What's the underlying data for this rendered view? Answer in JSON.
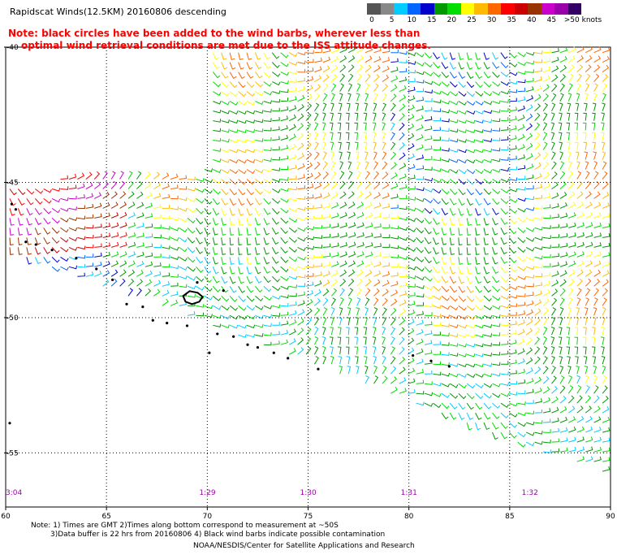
{
  "header": {
    "title": "Rapidscat Winds(12.5KM) 20160806 descending",
    "note_line1": "Note: black circles have been added to the wind barbs, wherever less than",
    "note_line2": "optimal wind retrieval conditions are met due to the ISS attitude changes."
  },
  "colorbar": {
    "labels": [
      "0",
      "5",
      "10",
      "15",
      "20",
      "25",
      "30",
      "35",
      "40",
      "45",
      ">50 knots"
    ],
    "colors": [
      "#555555",
      "#888888",
      "#00ccff",
      "#0066ff",
      "#0000cc",
      "#009900",
      "#00dd00",
      "#ffff00",
      "#ffbb00",
      "#ff6600",
      "#ff0000",
      "#cc0000",
      "#993300",
      "#cc00cc",
      "#9900aa",
      "#330066"
    ]
  },
  "chart_data": {
    "type": "map",
    "xlim": [
      60,
      90
    ],
    "ylim": [
      -57,
      -40
    ],
    "x_ticks": [
      "60",
      "65",
      "70",
      "75",
      "80",
      "85",
      "90"
    ],
    "y_ticks": [
      "-40",
      "-45",
      "-50",
      "-55"
    ],
    "y_tick_values": [
      -40,
      -45,
      -50,
      -55
    ],
    "x_tick_values": [
      60,
      65,
      70,
      75,
      80,
      85,
      90
    ],
    "time_labels": [
      {
        "lon": 60,
        "text": "3:04"
      },
      {
        "lon": 70,
        "text": "1:29"
      },
      {
        "lon": 75,
        "text": "1:30"
      },
      {
        "lon": 80,
        "text": "1:31"
      },
      {
        "lon": 86,
        "text": "1:32"
      }
    ]
  },
  "footer": {
    "line1": "Note: 1) Times are GMT 2)Times along bottom correspond to measurement at ~50S",
    "line2": "3)Data buffer is 22 hrs from 20160806 4) Black wind barbs indicate possible contamination",
    "line3": "NOAA/NESDIS/Center for Satellite Applications and Research"
  }
}
